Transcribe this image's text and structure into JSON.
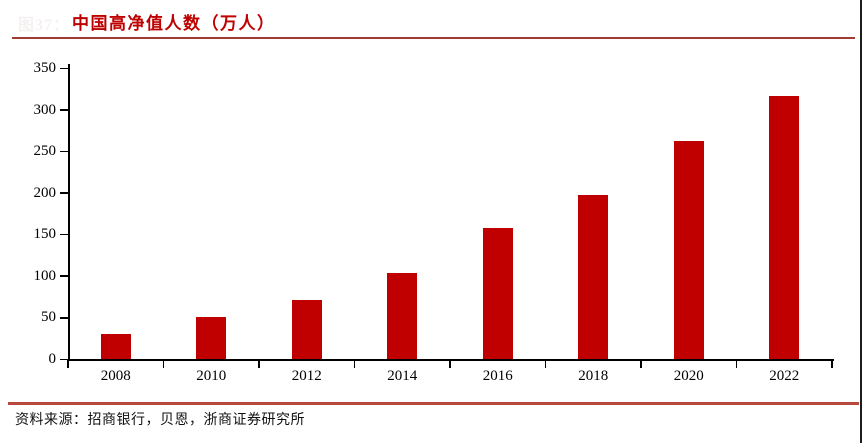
{
  "figure_number": "图37：",
  "header": {
    "title": "中国高净值人数（万人）"
  },
  "footer": {
    "source": "资料来源：招商银行，贝恩，浙商证券研究所"
  },
  "colors": {
    "bar_red": "#c00000",
    "title_red": "#bf0000",
    "rule_top_red": "#a23b32",
    "rule_bottom_red": "#b9483f",
    "axis_black": "#000000"
  },
  "chart_data": {
    "type": "bar",
    "title": "中国高净值人数（万人）",
    "categories": [
      "2008",
      "2010",
      "2012",
      "2014",
      "2016",
      "2018",
      "2020",
      "2022"
    ],
    "values": [
      30,
      50,
      71,
      104,
      158,
      197,
      262,
      316
    ],
    "xlabel": "",
    "ylabel": "",
    "ylim": [
      0,
      350
    ],
    "ytick_step": 50,
    "grid": false,
    "legend": false,
    "bar_color": "#c00000"
  }
}
